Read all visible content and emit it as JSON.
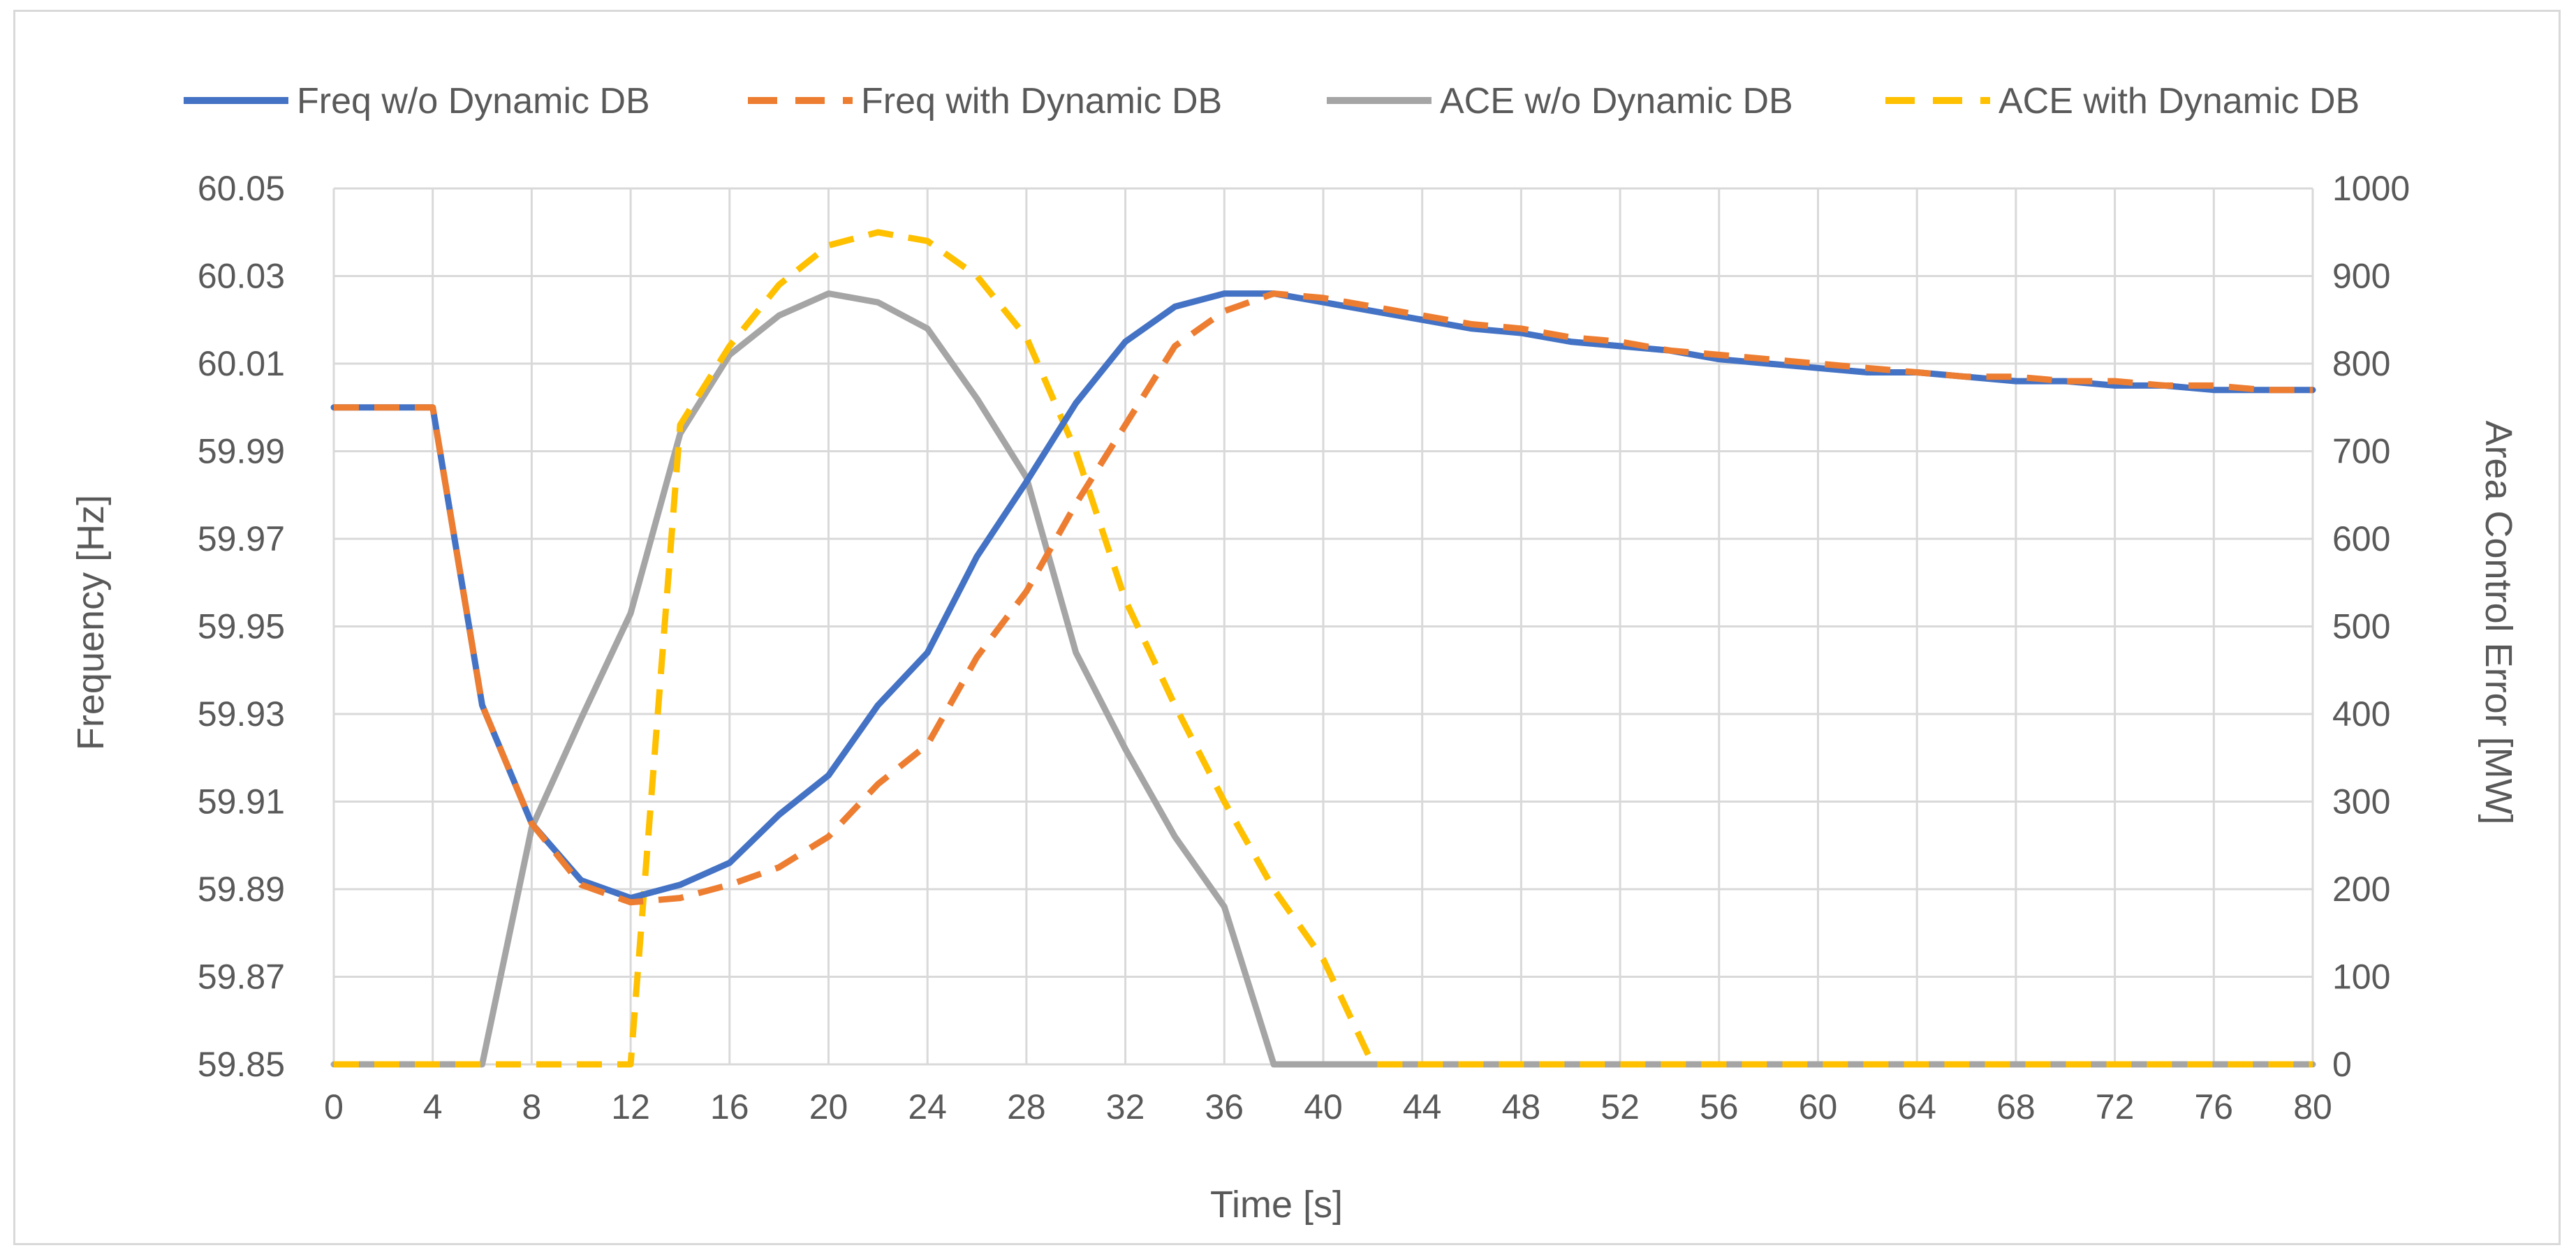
{
  "chart_data": {
    "type": "line",
    "title": "",
    "xlabel": "Time [s]",
    "ylabel": "Frequency [Hz]",
    "y2label": "Area Control Error [MW]",
    "xlim": [
      0,
      80
    ],
    "ylim": [
      59.85,
      60.05
    ],
    "y2lim": [
      0,
      1000
    ],
    "grid": true,
    "legend_position": "top",
    "x_ticks": [
      "0",
      "4",
      "8",
      "12",
      "16",
      "20",
      "24",
      "28",
      "32",
      "36",
      "40",
      "44",
      "48",
      "52",
      "56",
      "60",
      "64",
      "68",
      "72",
      "76",
      "80"
    ],
    "y_ticks": [
      "59.85",
      "59.87",
      "59.89",
      "59.91",
      "59.93",
      "59.95",
      "59.97",
      "59.99",
      "60.01",
      "60.03",
      "60.05"
    ],
    "y2_ticks": [
      "0",
      "100",
      "200",
      "300",
      "400",
      "500",
      "600",
      "700",
      "800",
      "900",
      "1000"
    ],
    "series": [
      {
        "name": "Freq w/o Dynamic DB",
        "axis": "left",
        "color": "#4472c4",
        "style": "solid",
        "x": [
          0,
          2,
          4,
          6,
          8,
          10,
          12,
          14,
          16,
          18,
          20,
          22,
          24,
          26,
          28,
          30,
          32,
          34,
          36,
          38,
          40,
          42,
          44,
          46,
          48,
          50,
          52,
          54,
          56,
          58,
          60,
          62,
          64,
          66,
          68,
          70,
          72,
          74,
          76,
          78,
          80
        ],
        "y": [
          60.0,
          60.0,
          60.0,
          59.932,
          59.905,
          59.892,
          59.888,
          59.891,
          59.896,
          59.907,
          59.916,
          59.932,
          59.944,
          59.966,
          59.983,
          60.001,
          60.015,
          60.023,
          60.026,
          60.026,
          60.024,
          60.022,
          60.02,
          60.018,
          60.017,
          60.015,
          60.014,
          60.013,
          60.011,
          60.01,
          60.009,
          60.008,
          60.008,
          60.007,
          60.006,
          60.006,
          60.005,
          60.005,
          60.004,
          60.004,
          60.004
        ]
      },
      {
        "name": "Freq with Dynamic DB",
        "axis": "left",
        "color": "#ed7d31",
        "style": "dashed",
        "x": [
          0,
          2,
          4,
          6,
          8,
          10,
          12,
          14,
          16,
          18,
          20,
          22,
          24,
          26,
          28,
          30,
          32,
          34,
          36,
          38,
          40,
          42,
          44,
          46,
          48,
          50,
          52,
          54,
          56,
          58,
          60,
          62,
          64,
          66,
          68,
          70,
          72,
          74,
          76,
          78,
          80
        ],
        "y": [
          60.0,
          60.0,
          60.0,
          59.932,
          59.905,
          59.891,
          59.887,
          59.888,
          59.891,
          59.895,
          59.902,
          59.914,
          59.923,
          59.943,
          59.958,
          59.978,
          59.996,
          60.014,
          60.022,
          60.026,
          60.025,
          60.023,
          60.021,
          60.019,
          60.018,
          60.016,
          60.015,
          60.013,
          60.012,
          60.011,
          60.01,
          60.009,
          60.008,
          60.007,
          60.007,
          60.006,
          60.006,
          60.005,
          60.005,
          60.004,
          60.004
        ]
      },
      {
        "name": "ACE w/o Dynamic DB",
        "axis": "right",
        "color": "#a5a5a5",
        "style": "solid",
        "x": [
          0,
          2,
          4,
          6,
          8,
          10,
          12,
          14,
          16,
          18,
          20,
          22,
          24,
          26,
          28,
          30,
          32,
          34,
          36,
          38,
          40,
          42,
          44,
          46,
          48,
          50,
          52,
          54,
          56,
          58,
          60,
          62,
          64,
          66,
          68,
          70,
          72,
          74,
          76,
          78,
          80
        ],
        "y": [
          0,
          0,
          0,
          0,
          270,
          395,
          515,
          720,
          810,
          855,
          880,
          870,
          840,
          760,
          670,
          470,
          360,
          260,
          180,
          0,
          0,
          0,
          0,
          0,
          0,
          0,
          0,
          0,
          0,
          0,
          0,
          0,
          0,
          0,
          0,
          0,
          0,
          0,
          0,
          0,
          0
        ]
      },
      {
        "name": "ACE with Dynamic DB",
        "axis": "right",
        "color": "#ffc000",
        "style": "dashed",
        "x": [
          0,
          2,
          4,
          6,
          8,
          10,
          12,
          14,
          16,
          18,
          20,
          22,
          24,
          26,
          28,
          30,
          32,
          34,
          36,
          38,
          40,
          42,
          44,
          46,
          48,
          50,
          52,
          54,
          56,
          58,
          60,
          62,
          64,
          66,
          68,
          70,
          72,
          74,
          76,
          78,
          80
        ],
        "y": [
          0,
          0,
          0,
          0,
          0,
          0,
          0,
          730,
          820,
          890,
          935,
          950,
          940,
          900,
          830,
          700,
          530,
          410,
          300,
          200,
          120,
          0,
          0,
          0,
          0,
          0,
          0,
          0,
          0,
          0,
          0,
          0,
          0,
          0,
          0,
          0,
          0,
          0,
          0,
          0,
          0
        ]
      }
    ]
  }
}
